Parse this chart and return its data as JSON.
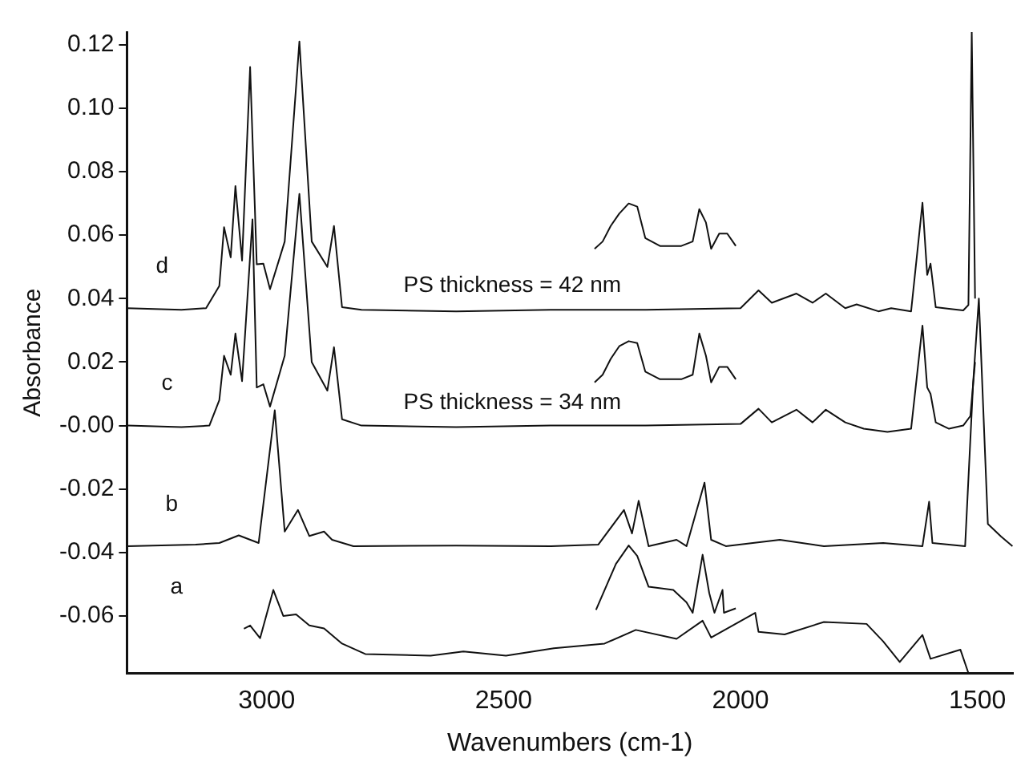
{
  "chart_data": {
    "type": "line",
    "xlabel": "Wavenumbers (cm-1)",
    "ylabel": "Absorbance",
    "xlim": [
      3295,
      1425
    ],
    "xticks": [
      3000,
      2500,
      2000,
      1500
    ],
    "ylim": [
      -0.078,
      0.124
    ],
    "yticks": [
      {
        "value": 0.12,
        "label": "0.12"
      },
      {
        "value": 0.1,
        "label": "0.10"
      },
      {
        "value": 0.08,
        "label": "0.08"
      },
      {
        "value": 0.06,
        "label": "0.06"
      },
      {
        "value": 0.04,
        "label": "0.04"
      },
      {
        "value": 0.02,
        "label": "0.02"
      },
      {
        "value": 0,
        "label": "-0.00"
      },
      {
        "value": -0.02,
        "label": "-0.02"
      },
      {
        "value": -0.04,
        "label": "-0.04"
      },
      {
        "value": -0.06,
        "label": "-0.06"
      }
    ],
    "grid": false,
    "legend": false,
    "marker": "none",
    "line_style": "solid",
    "series": [
      {
        "color": "#111111",
        "x": [
          3294,
          3180,
          3128,
          3100,
          3090,
          3076,
          3066,
          3052,
          3035,
          3021,
          3007,
          2993,
          2962,
          2931,
          2905,
          2872,
          2858,
          2841,
          2800,
          2600,
          2401,
          2200,
          2000,
          1962,
          1934,
          1882,
          1848,
          1820,
          1779,
          1755,
          1709,
          1682,
          1640,
          1616,
          1606,
          1599,
          1588,
          1560,
          1530,
          1519,
          1512,
          1505
        ],
        "values": [
          0.037,
          0.0365,
          0.037,
          0.044,
          0.0625,
          0.053,
          0.0755,
          0.052,
          0.113,
          0.0508,
          0.051,
          0.043,
          0.058,
          0.121,
          0.058,
          0.05,
          0.0629,
          0.0373,
          0.0365,
          0.036,
          0.0365,
          0.0365,
          0.037,
          0.0426,
          0.0387,
          0.0416,
          0.0387,
          0.0416,
          0.037,
          0.0382,
          0.036,
          0.037,
          0.036,
          0.0702,
          0.0475,
          0.051,
          0.0373,
          0.0368,
          0.0363,
          0.038,
          0.124,
          0.04
        ]
      },
      {
        "color": "#111111",
        "x": [
          3294,
          3180,
          3121,
          3100,
          3090,
          3076,
          3066,
          3052,
          3030,
          3021,
          3007,
          2993,
          2962,
          2931,
          2905,
          2872,
          2858,
          2841,
          2800,
          2600,
          2401,
          2200,
          2000,
          1962,
          1934,
          1882,
          1848,
          1820,
          1779,
          1740,
          1690,
          1640,
          1616,
          1606,
          1599,
          1588,
          1560,
          1530,
          1515,
          1505
        ],
        "values": [
          0.0,
          -0.0005,
          0.0,
          0.008,
          0.022,
          0.016,
          0.029,
          0.014,
          0.065,
          0.012,
          0.013,
          0.006,
          0.022,
          0.073,
          0.02,
          0.011,
          0.0247,
          0.002,
          0.0,
          -0.0005,
          0.0,
          0.0,
          0.0005,
          0.0053,
          0.001,
          0.005,
          0.001,
          0.005,
          0.001,
          -0.001,
          -0.002,
          -0.001,
          0.0315,
          0.012,
          0.01,
          0.001,
          -0.001,
          0.0,
          0.003,
          0.02
        ]
      },
      {
        "color": "#111111",
        "x": [
          3294,
          3150,
          3100,
          3059,
          3017,
          2983,
          2962,
          2934,
          2910,
          2879,
          2862,
          2817,
          2600,
          2400,
          2300,
          2246,
          2229,
          2215,
          2194,
          2135,
          2114,
          2076,
          2062,
          2031,
          1917,
          1824,
          1699,
          1616,
          1602,
          1595,
          1526,
          1509,
          1497,
          1478,
          1450,
          1426
        ],
        "values": [
          -0.038,
          -0.0375,
          -0.037,
          -0.0346,
          -0.037,
          0.0048,
          -0.0334,
          -0.0266,
          -0.0348,
          -0.0334,
          -0.036,
          -0.038,
          -0.0378,
          -0.038,
          -0.0375,
          -0.0266,
          -0.034,
          -0.0237,
          -0.038,
          -0.036,
          -0.038,
          -0.018,
          -0.036,
          -0.038,
          -0.036,
          -0.038,
          -0.037,
          -0.038,
          -0.024,
          -0.037,
          -0.038,
          0.0136,
          0.04,
          -0.031,
          -0.035,
          -0.038
        ]
      },
      {
        "color": "#111111",
        "x": [
          3048,
          3035,
          3014,
          2986,
          2965,
          2938,
          2910,
          2879,
          2841,
          2792,
          2654,
          2585,
          2495,
          2394,
          2287,
          2221,
          2135,
          2080,
          2062,
          1969,
          1962,
          1907,
          1824,
          1734,
          1699,
          1664,
          1616,
          1599,
          1536,
          1519
        ],
        "values": [
          -0.064,
          -0.063,
          -0.067,
          -0.0518,
          -0.06,
          -0.0595,
          -0.063,
          -0.0639,
          -0.0687,
          -0.072,
          -0.0725,
          -0.0712,
          -0.0725,
          -0.0702,
          -0.0687,
          -0.0644,
          -0.0672,
          -0.0615,
          -0.0668,
          -0.059,
          -0.065,
          -0.0658,
          -0.0619,
          -0.0625,
          -0.068,
          -0.0745,
          -0.066,
          -0.0735,
          -0.0706,
          -0.078
        ]
      },
      {
        "color": "#111111",
        "x": [
          2308,
          2291,
          2274,
          2256,
          2236,
          2218,
          2201,
          2170,
          2125,
          2101,
          2087,
          2073,
          2062,
          2045,
          2028,
          2010
        ],
        "values": [
          0.0557,
          0.058,
          0.0629,
          0.0668,
          0.07,
          0.069,
          0.0591,
          0.0566,
          0.0566,
          0.058,
          0.0682,
          0.064,
          0.0557,
          0.0605,
          0.0605,
          0.0566
        ]
      },
      {
        "color": "#111111",
        "x": [
          2308,
          2291,
          2274,
          2256,
          2236,
          2218,
          2201,
          2170,
          2125,
          2101,
          2087,
          2073,
          2062,
          2045,
          2028,
          2010
        ],
        "values": [
          0.0136,
          0.016,
          0.021,
          0.025,
          0.0266,
          0.026,
          0.017,
          0.0146,
          0.0146,
          0.016,
          0.029,
          0.022,
          0.0136,
          0.0185,
          0.0185,
          0.0146
        ]
      },
      {
        "color": "#111111",
        "x": [
          2305,
          2263,
          2236,
          2218,
          2194,
          2142,
          2114,
          2101,
          2080,
          2066,
          2055,
          2038,
          2035,
          2010
        ],
        "values": [
          -0.0581,
          -0.0436,
          -0.0378,
          -0.0411,
          -0.0508,
          -0.0518,
          -0.0557,
          -0.059,
          -0.0407,
          -0.0528,
          -0.059,
          -0.0518,
          -0.059,
          -0.0576
        ]
      }
    ],
    "annotations": [
      "d",
      "c",
      "b",
      "a",
      "PS thickness = 42 nm",
      "PS thickness = 34 nm"
    ]
  }
}
